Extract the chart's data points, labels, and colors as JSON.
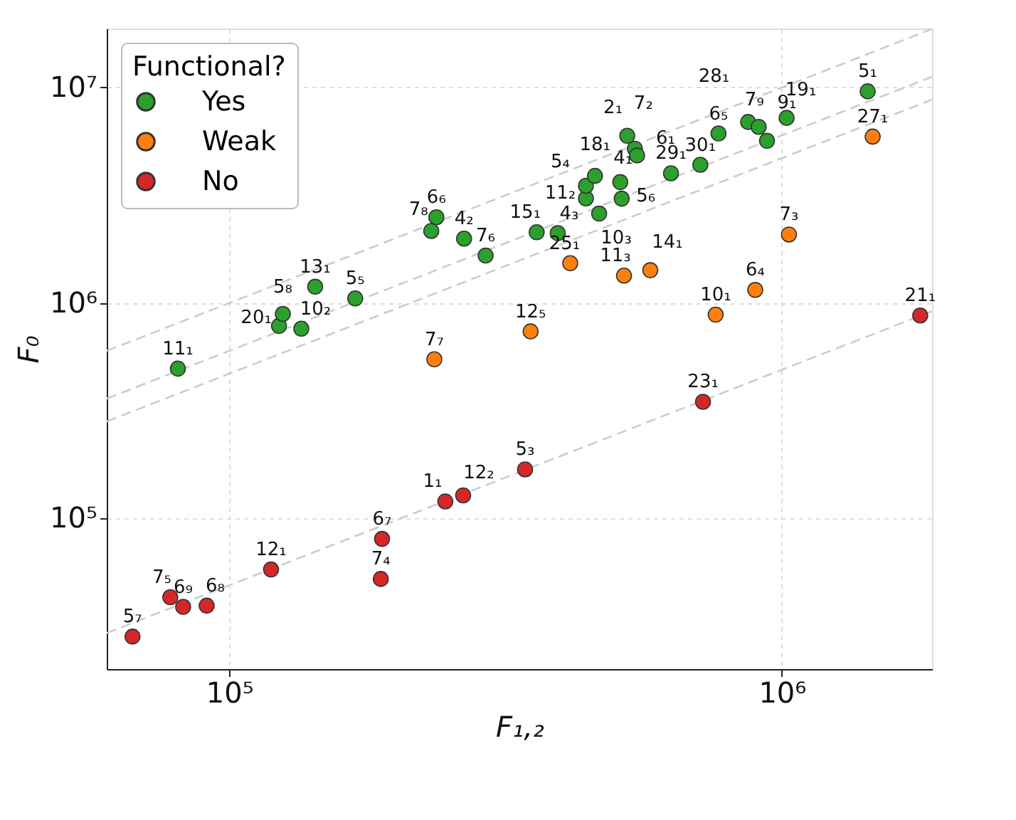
{
  "chart_data": {
    "type": "scatter",
    "xlabel": "F₁,₂",
    "ylabel": "F₀",
    "legend_title": "Functional?",
    "legend": "top left",
    "grid": true,
    "log": "xy",
    "marker": "circle",
    "xlim": [
      60000,
      1870000
    ],
    "ylim": [
      20000,
      18800000
    ],
    "xticks": [
      {
        "value": 100000,
        "label": "10⁵"
      },
      {
        "value": 1000000,
        "label": "10⁶"
      }
    ],
    "yticks": [
      {
        "value": 100000,
        "label": "10⁵"
      },
      {
        "value": 1000000,
        "label": "10⁶"
      },
      {
        "value": 10000000,
        "label": "10⁷"
      }
    ],
    "series": [
      {
        "name": "Yes",
        "color": "#2ca02c",
        "x": [
          80700,
          123000,
          125000,
          135000,
          143000,
          169000,
          232000,
          237000,
          266000,
          291000,
          360000,
          393000,
          467000,
          442000,
          442000,
          459000,
          510000,
          513000,
          525000,
          542000,
          547000,
          630000,
          712000,
          768000,
          869000,
          908000,
          940000,
          1020000,
          1430000
        ],
        "values": [
          496000,
          783000,
          890000,
          760000,
          1190000,
          1050000,
          2160000,
          2500000,
          1990000,
          1660000,
          2130000,
          2110000,
          2600000,
          3060000,
          3500000,
          3890000,
          3640000,
          3050000,
          5970000,
          5200000,
          4840000,
          4000000,
          4380000,
          6120000,
          6920000,
          6570000,
          5660000,
          7230000,
          9600000
        ]
      },
      {
        "name": "Weak",
        "color": "#ff7f0e",
        "x": [
          235000,
          351000,
          414000,
          518000,
          578000,
          759000,
          895000,
          1030000,
          1460000
        ],
        "values": [
          548000,
          738000,
          1530000,
          1340000,
          1420000,
          883000,
          1150000,
          2080000,
          5920000
        ]
      },
      {
        "name": "No",
        "color": "#d62728",
        "x": [
          66800,
          78200,
          82500,
          91000,
          119000,
          188000,
          189000,
          246000,
          265000,
          343000,
          720000,
          1780000
        ],
        "values": [
          28300,
          43100,
          38900,
          39400,
          58000,
          52400,
          80400,
          120000,
          128000,
          169000,
          348000,
          875000
        ]
      },
      {
        "type": "line",
        "marker": "none",
        "color": "#cccccc",
        "line_style": "dashed",
        "x": [
          60000,
          1870000
        ],
        "values": [
          600000,
          18700000
        ]
      },
      {
        "type": "line",
        "marker": "none",
        "color": "#cccccc",
        "line_style": "dashed",
        "x": [
          60000,
          1870000
        ],
        "values": [
          360000,
          11220000
        ]
      },
      {
        "type": "line",
        "marker": "none",
        "color": "#cccccc",
        "line_style": "dashed",
        "x": [
          60000,
          1870000
        ],
        "values": [
          282000,
          8790000
        ]
      },
      {
        "type": "line",
        "marker": "none",
        "color": "#cccccc",
        "line_style": "dashed",
        "x": [
          60000,
          1870000
        ],
        "values": [
          29400,
          916300
        ]
      }
    ],
    "annotations": [
      {
        "text": "11₁",
        "x": 80700,
        "y": 496000
      },
      {
        "text": "20₁",
        "x": 123000,
        "y": 783000
      },
      {
        "text": "5₈",
        "x": 125000,
        "y": 890000
      },
      {
        "text": "10₂",
        "x": 135000,
        "y": 760000
      },
      {
        "text": "13₁",
        "x": 143000,
        "y": 1190000
      },
      {
        "text": "5₅",
        "x": 169000,
        "y": 1050000
      },
      {
        "text": "7₈",
        "x": 232000,
        "y": 2160000
      },
      {
        "text": "6₆",
        "x": 237000,
        "y": 2500000
      },
      {
        "text": "4₂",
        "x": 266000,
        "y": 1990000
      },
      {
        "text": "7₆",
        "x": 291000,
        "y": 1660000
      },
      {
        "text": "15₁",
        "x": 360000,
        "y": 2130000
      },
      {
        "text": "4₃",
        "x": 393000,
        "y": 2110000
      },
      {
        "text": "10₃",
        "x": 467000,
        "y": 2600000
      },
      {
        "text": "11₂",
        "x": 442000,
        "y": 3060000
      },
      {
        "text": "5₄",
        "x": 442000,
        "y": 3500000
      },
      {
        "text": "18₁",
        "x": 459000,
        "y": 3890000
      },
      {
        "text": "4₁",
        "x": 510000,
        "y": 3640000
      },
      {
        "text": "5₆",
        "x": 513000,
        "y": 3050000
      },
      {
        "text": "2₁",
        "x": 525000,
        "y": 5970000
      },
      {
        "text": "7₂",
        "x": 542000,
        "y": 5200000
      },
      {
        "text": "6₁",
        "x": 547000,
        "y": 4840000
      },
      {
        "text": "29₁",
        "x": 630000,
        "y": 4000000
      },
      {
        "text": "30₁",
        "x": 712000,
        "y": 4380000
      },
      {
        "text": "6₅",
        "x": 768000,
        "y": 6120000
      },
      {
        "text": "28₁",
        "x": 869000,
        "y": 6920000
      },
      {
        "text": "7₉",
        "x": 908000,
        "y": 6570000
      },
      {
        "text": "9₁",
        "x": 940000,
        "y": 5660000
      },
      {
        "text": "19₁",
        "x": 1020000,
        "y": 7230000
      },
      {
        "text": "5₁",
        "x": 1430000,
        "y": 9600000
      },
      {
        "text": "7₇",
        "x": 235000,
        "y": 548000
      },
      {
        "text": "12₅",
        "x": 351000,
        "y": 738000
      },
      {
        "text": "25₁",
        "x": 414000,
        "y": 1530000
      },
      {
        "text": "11₃",
        "x": 518000,
        "y": 1340000
      },
      {
        "text": "14₁",
        "x": 578000,
        "y": 1420000
      },
      {
        "text": "10₁",
        "x": 759000,
        "y": 883000
      },
      {
        "text": "6₄",
        "x": 895000,
        "y": 1150000
      },
      {
        "text": "7₃",
        "x": 1030000,
        "y": 2080000
      },
      {
        "text": "27₁",
        "x": 1460000,
        "y": 5920000
      },
      {
        "text": "5₇",
        "x": 66800,
        "y": 28300
      },
      {
        "text": "7₅",
        "x": 78200,
        "y": 43100
      },
      {
        "text": "6₉",
        "x": 82500,
        "y": 38900
      },
      {
        "text": "6₈",
        "x": 91000,
        "y": 39400
      },
      {
        "text": "12₁",
        "x": 119000,
        "y": 58000
      },
      {
        "text": "7₄",
        "x": 188000,
        "y": 52400
      },
      {
        "text": "6₇",
        "x": 189000,
        "y": 80400
      },
      {
        "text": "1₁",
        "x": 246000,
        "y": 120000
      },
      {
        "text": "12₂",
        "x": 265000,
        "y": 128000
      },
      {
        "text": "5₃",
        "x": 343000,
        "y": 169000
      },
      {
        "text": "23₁",
        "x": 720000,
        "y": 348000
      },
      {
        "text": "21₁",
        "x": 1780000,
        "y": 875000
      }
    ]
  }
}
